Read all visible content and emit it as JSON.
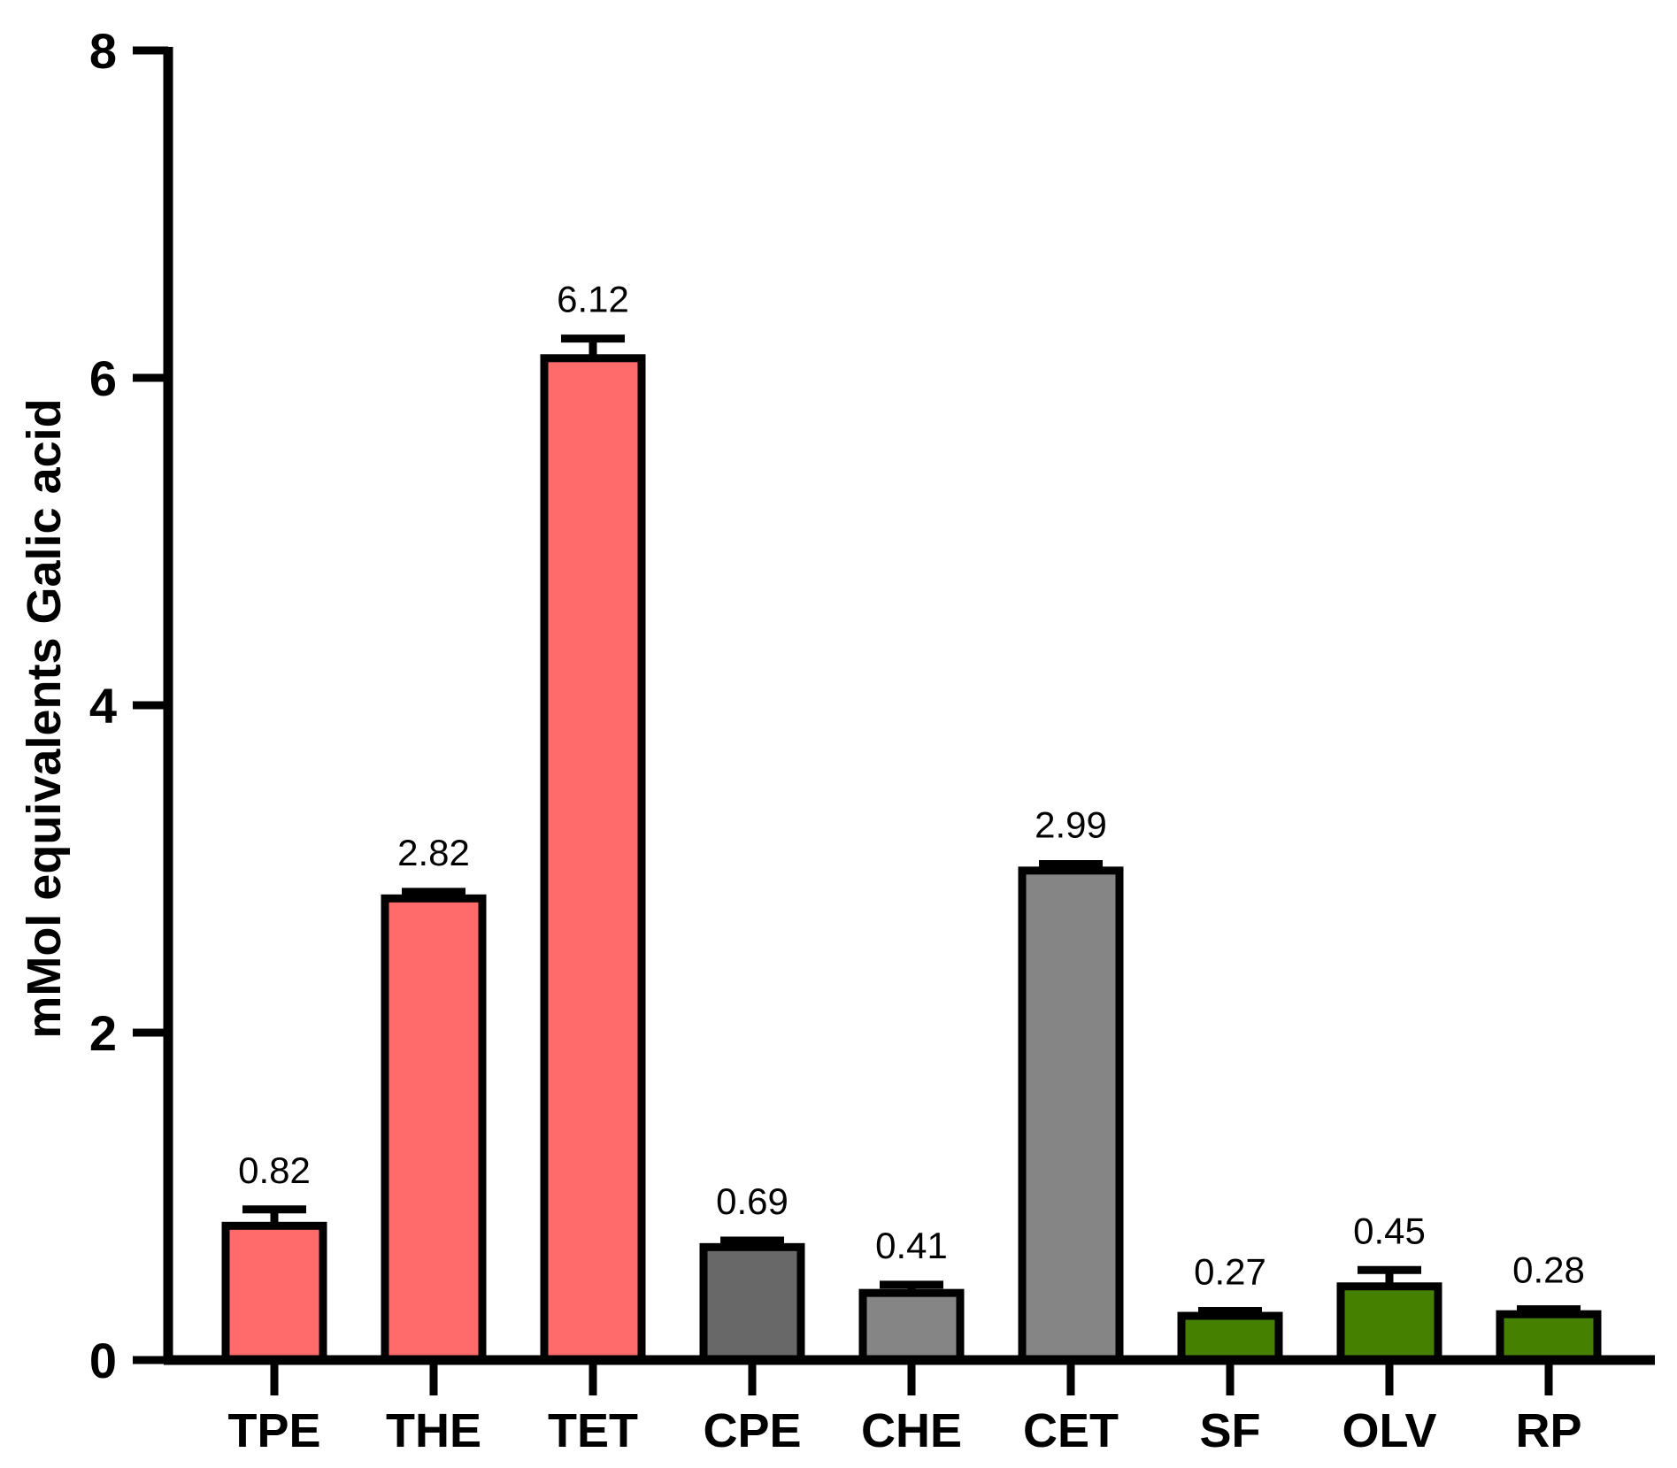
{
  "chart_data": {
    "type": "bar",
    "xlabel": "",
    "ylabel": "mMol equivalents Galic acid",
    "ylim": [
      0,
      8
    ],
    "yticks": [
      0,
      2,
      4,
      6,
      8
    ],
    "grid": false,
    "categories": [
      "TPE",
      "THE",
      "TET",
      "CPE",
      "CHE",
      "CET",
      "SF",
      "OLV",
      "RP"
    ],
    "values": [
      0.82,
      2.82,
      6.12,
      0.69,
      0.41,
      2.99,
      0.27,
      0.45,
      0.28
    ],
    "value_labels": [
      "0.82",
      "2.82",
      "6.12",
      "0.69",
      "0.41",
      "2.99",
      "0.27",
      "0.45",
      "0.28"
    ],
    "errors": [
      0.1,
      0.04,
      0.12,
      0.04,
      0.05,
      0.04,
      0.03,
      0.1,
      0.03
    ],
    "colors": [
      "#FF6A6A",
      "#FF6A6A",
      "#FF6A6A",
      "#686868",
      "#858585",
      "#858585",
      "#458000",
      "#458000",
      "#458000"
    ]
  }
}
